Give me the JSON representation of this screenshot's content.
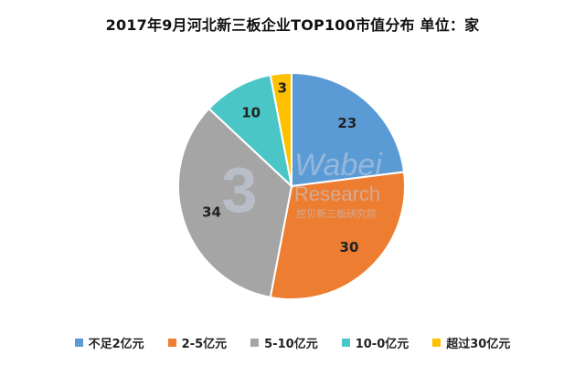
{
  "chart_data": {
    "type": "pie",
    "title": "2017年9月河北新三板企业TOP100市值分布 单位：家",
    "categories": [
      "不足2亿元",
      "2-5亿元",
      "5-10亿元",
      "10-0亿元",
      "超过30亿元"
    ],
    "values": [
      23,
      30,
      34,
      10,
      3
    ],
    "colors": [
      "#5B9BD5",
      "#ED7D31",
      "#A5A5A5",
      "#4BC6C6",
      "#FFC000"
    ],
    "start_angle": "12 o'clock",
    "direction": "clockwise",
    "legend_position": "bottom"
  },
  "watermark": {
    "brand": "Wabei",
    "sub": "Research",
    "cn": "挖贝新三板研究院",
    "logo_glyph": "3"
  }
}
